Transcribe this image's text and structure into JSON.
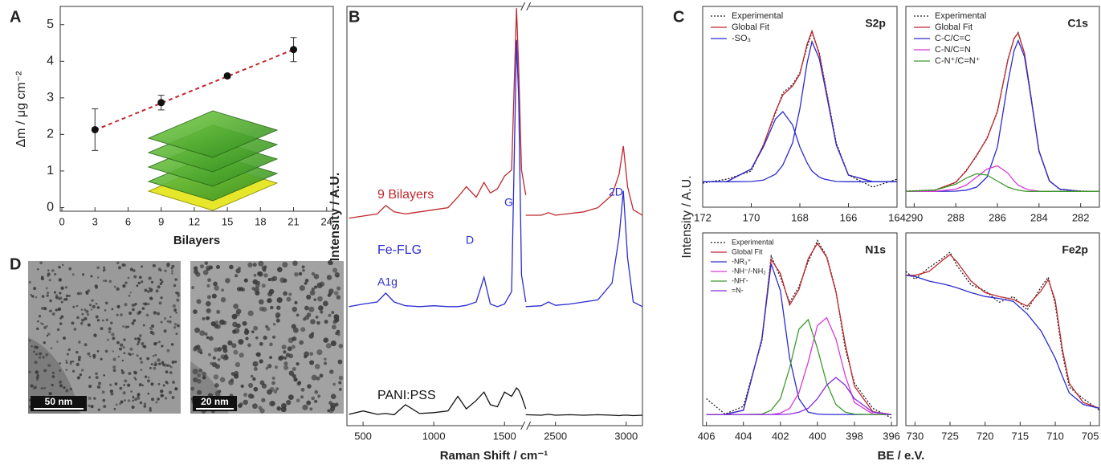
{
  "panel_labels": [
    "A",
    "B",
    "C",
    "D"
  ],
  "panel_c_labels": {
    "ylabel": "Intensity / A.U.",
    "xlabel": "BE / e.V."
  },
  "tem_images": [
    {
      "scale_bar": "50 nm"
    },
    {
      "scale_bar": "20 nm"
    }
  ],
  "chart_data": [
    {
      "type": "scatter",
      "xlabel": "Bilayers",
      "ylabel": "Δm / μg cm⁻²",
      "xlim": [
        -0.15,
        24.6
      ],
      "xticks": [
        0,
        3,
        6,
        9,
        12,
        15,
        18,
        21,
        24
      ],
      "ylim": [
        -0.1,
        5.5
      ],
      "yticks": [
        0,
        1,
        2,
        3,
        4,
        5
      ],
      "x": [
        3,
        9,
        15,
        21
      ],
      "values": [
        2.13,
        2.87,
        3.6,
        4.32
      ],
      "errors": [
        0.57,
        0.2,
        0.05,
        0.33
      ],
      "color": "#111111",
      "fit": {
        "x": [
          3,
          21
        ],
        "values": [
          2.12,
          4.32
        ],
        "color": "#c0272d",
        "dash": "dashed"
      }
    },
    {
      "type": "line",
      "xlabel": "Raman Shift / cm⁻¹",
      "ylabel": "Intensity / A.U.",
      "xlim": [
        386,
        3115
      ],
      "xbreak": [
        1650,
        2290
      ],
      "xticks": [
        500,
        1000,
        1500,
        2500,
        3000
      ],
      "ylim": [
        0,
        100
      ],
      "x": [
        400,
        500,
        600,
        660,
        720,
        800,
        900,
        1000,
        1100,
        1170,
        1230,
        1300,
        1355,
        1400,
        1450,
        1500,
        1550,
        1585,
        1600,
        1620,
        1650,
        2290,
        2400,
        2450,
        2500,
        2600,
        2700,
        2800,
        2900,
        2950,
        2980,
        3010,
        3050,
        3115
      ],
      "series": [
        {
          "name": "9 Bilayers",
          "color": "#c0272d",
          "values": [
            49.5,
            50,
            50.5,
            52.5,
            51,
            50.5,
            51,
            51.5,
            52,
            54.5,
            57,
            54.5,
            58,
            55.5,
            56.5,
            59.5,
            61,
            99.6,
            85,
            61,
            55,
            50.2,
            50.2,
            50.8,
            50.2,
            50.6,
            51,
            52,
            55,
            60,
            66.7,
            57,
            51.5,
            50.2
          ]
        },
        {
          "name": "Fe-FLG",
          "color": "#2b2bd0",
          "values": [
            28.4,
            29,
            29.5,
            31.6,
            29.5,
            28.6,
            28.4,
            28.6,
            28.4,
            28.4,
            28.7,
            29.5,
            35.4,
            29,
            28.4,
            29,
            32,
            92,
            78,
            36,
            29.5,
            28.4,
            28.6,
            29.5,
            28.7,
            29,
            29.5,
            30,
            34,
            45,
            56,
            40,
            29.5,
            28.4
          ]
        },
        {
          "name": "PANI:PSS",
          "color": "#111111",
          "values": [
            2.7,
            3.5,
            2.7,
            2.9,
            2.6,
            5,
            2.9,
            3.1,
            3.5,
            7,
            4,
            6,
            8,
            5,
            4.5,
            8,
            7,
            9,
            8.5,
            7,
            4,
            2.6,
            2.5,
            2.7,
            2.5,
            2.6,
            2.5,
            2.6,
            2.5,
            2.4,
            2.5,
            2.5,
            2.4,
            2.5
          ]
        }
      ],
      "annotations": [
        "A1g",
        "D",
        "G",
        "2D"
      ],
      "annotation_color": "#2b2bd0"
    },
    {
      "type": "line",
      "title": "S2p",
      "legend": "upper-left",
      "xlim": [
        172,
        164
      ],
      "xticks": [
        172,
        170,
        168,
        166,
        164
      ],
      "ylim": [
        0,
        100
      ],
      "x": [
        172,
        171,
        170,
        169.5,
        169,
        168.7,
        168.3,
        168,
        167.7,
        167.5,
        167.2,
        167,
        166.5,
        166,
        165,
        164
      ],
      "series": [
        {
          "name": "Experimental",
          "color": "#222222",
          "dash": "dotted",
          "values": [
            12,
            14,
            18,
            31,
            47,
            57,
            61,
            67,
            80,
            87,
            77,
            64,
            32,
            16,
            10,
            14
          ]
        },
        {
          "name": "Global Fit",
          "color": "#c0272d",
          "values": [
            12.7,
            12.8,
            19,
            30.8,
            47.8,
            55.9,
            60.3,
            66.3,
            81.3,
            87.8,
            76.3,
            63.3,
            31.1,
            16,
            12.7,
            12.7
          ]
        },
        {
          "name": "-SO₃",
          "color": "#2b2bd0",
          "values": [
            12.7,
            12.7,
            12.8,
            13.5,
            16.5,
            21,
            32,
            49,
            72,
            82.5,
            74,
            62,
            31,
            16,
            12.7,
            12.7
          ]
        },
        {
          "color": "#2b2bd0",
          "values": [
            12.7,
            12.8,
            19,
            30,
            44,
            47.6,
            41,
            30,
            22,
            18,
            15,
            14,
            12.8,
            12.7,
            12.7,
            12.7
          ]
        }
      ]
    },
    {
      "type": "line",
      "title": "C1s",
      "legend": "upper-left",
      "xlim": [
        290.4,
        281.1
      ],
      "xticks": [
        290,
        288,
        286,
        284,
        282
      ],
      "ylim": [
        0,
        100
      ],
      "x": [
        290.4,
        289,
        288,
        287.5,
        287,
        286.5,
        286,
        285.5,
        285.2,
        285,
        284.7,
        284.5,
        284,
        283.5,
        283,
        282,
        281.1
      ],
      "series": [
        {
          "name": "Experimental",
          "color": "#222222",
          "dash": "dotted",
          "values": [
            8,
            8.6,
            12.3,
            18.4,
            25.5,
            34.6,
            47.4,
            73.6,
            84,
            87,
            76.4,
            63.1,
            27.8,
            13.2,
            8.8,
            8.1,
            7.8
          ]
        },
        {
          "name": "Global Fit",
          "color": "#c0272d",
          "values": [
            7.9,
            8.5,
            12.5,
            18.1,
            25.9,
            34.2,
            47.8,
            73.2,
            84.2,
            86.7,
            76.7,
            62.8,
            28.1,
            13,
            9,
            7.9,
            7.9
          ]
        },
        {
          "name": "C-C/C=C",
          "color": "#2b2bd0",
          "values": [
            7.9,
            7.9,
            8,
            8.5,
            10,
            15,
            30,
            62,
            78,
            83,
            75,
            62,
            28,
            13,
            9,
            7.9,
            7.9
          ]
        },
        {
          "name": "C-N/C=N",
          "color": "#d63bd6",
          "values": [
            7.9,
            7.9,
            9,
            11,
            15,
            19,
            20.6,
            17,
            13,
            11,
            9.5,
            8.7,
            8,
            7.9,
            7.9,
            7.9,
            7.9
          ]
        },
        {
          "name": "C-N⁺/C=N⁺",
          "color": "#3c9a2a",
          "values": [
            7.9,
            8.5,
            11.5,
            14.5,
            16.7,
            16,
            13,
            10,
            9,
            8.5,
            8,
            7.9,
            7.9,
            7.9,
            7.9,
            7.9,
            7.9
          ]
        }
      ]
    },
    {
      "type": "line",
      "title": "N1s",
      "legend": "upper-left",
      "xlim": [
        406.2,
        395.7
      ],
      "xticks": [
        406,
        404,
        402,
        400,
        398,
        396
      ],
      "ylim": [
        0,
        100
      ],
      "x": [
        406,
        405,
        404,
        403,
        402.5,
        402,
        401.5,
        401,
        400.5,
        400,
        399.5,
        399,
        398.5,
        398,
        397,
        396
      ],
      "series": [
        {
          "name": "Experimental",
          "color": "#222222",
          "dash": "dotted",
          "values": [
            14,
            6,
            10,
            44,
            88,
            77,
            64,
            72,
            85,
            96,
            88,
            70,
            40,
            22,
            9,
            4
          ]
        },
        {
          "name": "Global Fit",
          "color": "#c0272d",
          "values": [
            5.8,
            5.8,
            8,
            45.2,
            86.2,
            78.9,
            62.6,
            70.6,
            86.6,
            94.6,
            87.4,
            69.4,
            42.4,
            20.4,
            7.2,
            5.8
          ]
        },
        {
          "name": "-NR₃⁺",
          "color": "#2b2bd0",
          "values": [
            5.8,
            5.8,
            8,
            45,
            84,
            70,
            35,
            14,
            7,
            6,
            5.8,
            5.8,
            5.8,
            5.8,
            5.8,
            5.8
          ]
        },
        {
          "name": "-NH⁻/-NH₂",
          "color": "#d63bd6",
          "values": [
            5.8,
            5.8,
            5.8,
            5.8,
            5.8,
            6.5,
            9,
            17,
            33,
            52,
            56,
            45,
            26,
            12,
            6,
            5.8
          ]
        },
        {
          "name": "-NH'-",
          "color": "#3c9a2a",
          "values": [
            5.8,
            5.8,
            5.8,
            6,
            8,
            14,
            30,
            50,
            55,
            40,
            22,
            11,
            7,
            6,
            5.8,
            5.8
          ]
        },
        {
          "name": "=N-",
          "color": "#8a2be2",
          "values": [
            5.8,
            5.8,
            5.8,
            5.8,
            5.8,
            5.8,
            6,
            7,
            9,
            14,
            21,
            25,
            21,
            14,
            7,
            5.8
          ]
        }
      ]
    },
    {
      "type": "line",
      "title": "Fe2p",
      "xlim": [
        731.3,
        703.7
      ],
      "xticks": [
        730,
        725,
        720,
        715,
        710,
        705
      ],
      "ylim": [
        0,
        100
      ],
      "x": [
        731.3,
        730,
        728,
        726,
        725,
        724,
        722,
        720,
        718,
        716,
        714,
        712,
        711,
        710,
        709,
        708,
        706,
        703.7
      ],
      "series": [
        {
          "name": "Experimental",
          "color": "#222222",
          "dash": "dotted",
          "values": [
            80,
            76,
            82,
            87,
            90,
            83,
            73,
            70,
            64,
            67,
            60,
            72,
            77,
            63,
            38,
            20,
            14,
            8
          ]
        },
        {
          "name": "Global Fit",
          "color": "#c0272d",
          "values": [
            78,
            78,
            80,
            86,
            88.7,
            85,
            75,
            69,
            67,
            65.5,
            62,
            70,
            75.8,
            65,
            40,
            22,
            12,
            9
          ]
        },
        {
          "color": "#2b2bd0",
          "values": [
            78,
            77.4,
            75,
            73.5,
            72.6,
            71.5,
            69,
            67,
            66,
            64.5,
            58,
            49,
            42,
            35,
            25.8,
            17,
            11,
            9
          ]
        }
      ]
    }
  ]
}
